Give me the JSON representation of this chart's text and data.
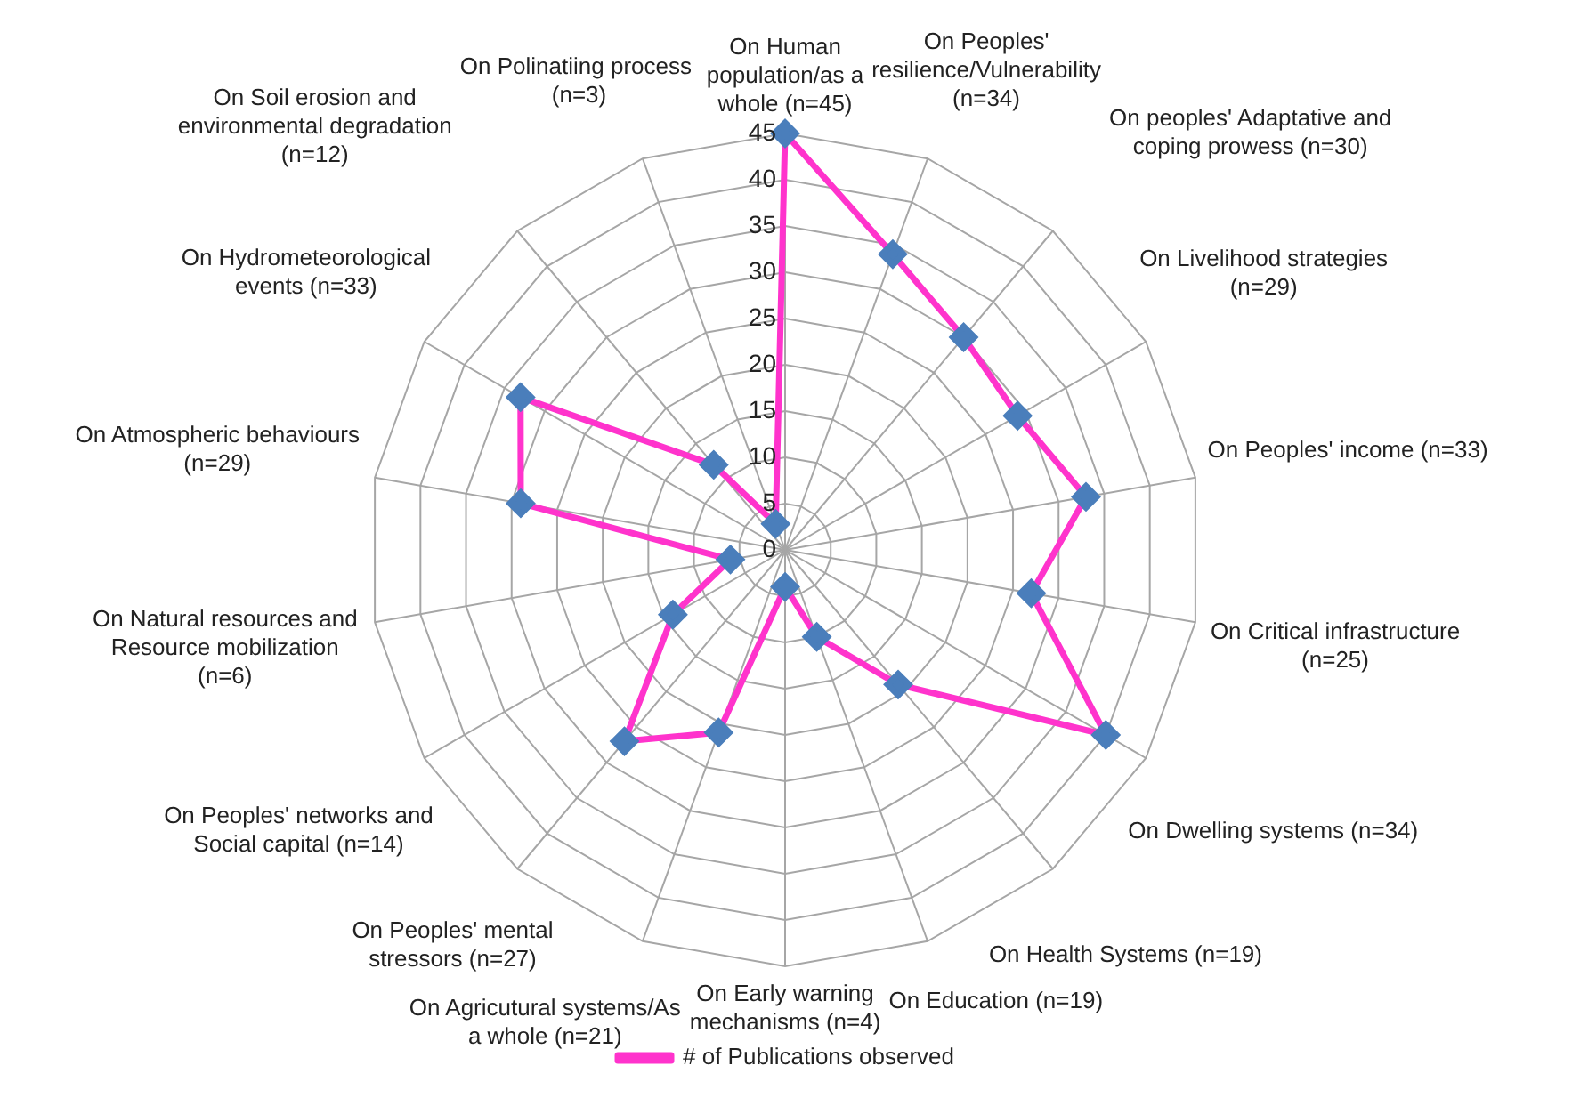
{
  "chart_data": {
    "type": "radar",
    "categories": [
      "On Human population/as a whole (n=45)",
      "On Peoples' resilience/Vulnerability (n=34)",
      "On peoples' Adaptative and coping prowess (n=30)",
      "On Livelihood strategies (n=29)",
      "On Peoples' income (n=33)",
      "On Critical infrastructure (n=25)",
      "On Dwelling systems (n=34)",
      "On Health Systems (n=19)",
      "On Education (n=19)",
      "On Early warning mechanisms (n=4)",
      "On Agricutural systems/As a whole (n=21)",
      "On Peoples' mental stressors (n=27)",
      "On Peoples' networks and Social capital (n=14)",
      "On Natural resources and Resource mobilization (n=6)",
      "On Atmospheric behaviours (n=29)",
      "On Hydrometeorological events (n=33)",
      "On Soil erosion and environmental degradation (n=12)",
      "On Polinatiing process  (n=3)"
    ],
    "series": [
      {
        "name": "# of Publications observed",
        "color": "#ff33cc",
        "colors": [
          "#4a7ebb",
          "#4a7ebb",
          "#4a7ebb",
          "#4a7ebb",
          "#4a7ebb",
          "#4a7ebb",
          "#4a7ebb",
          "#4a7ebb",
          "#4a7ebb",
          "#4a7ebb",
          "#4a7ebb",
          "#4a7ebb",
          "#4a7ebb",
          "#4a7ebb",
          "#4a7ebb",
          "#4a7ebb",
          "#4a7ebb",
          "#4a7ebb"
        ],
        "values": [
          45,
          34,
          30,
          29,
          33,
          27,
          40,
          19,
          10,
          4,
          21,
          27,
          14,
          6,
          29,
          33,
          12,
          3
        ]
      }
    ],
    "ylim": [
      0,
      45
    ],
    "yticks": [
      0,
      5,
      10,
      15,
      20,
      25,
      30,
      35,
      40,
      45
    ],
    "grid": true,
    "legend": "bottom",
    "marker": "diamond",
    "line_style": "solid"
  }
}
